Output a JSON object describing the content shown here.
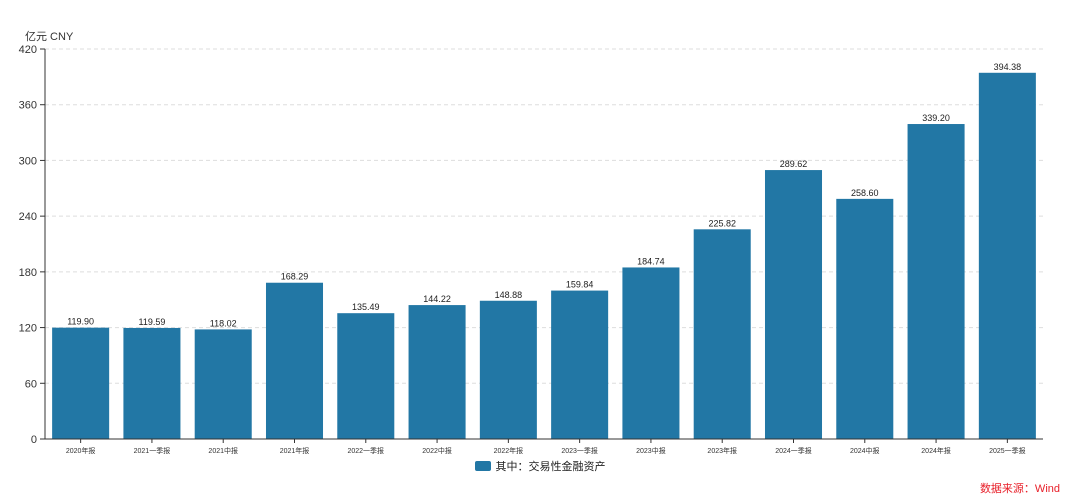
{
  "colors": {
    "bar": "#2277a5",
    "axis": "#333333",
    "grid": "#dddddd",
    "source": "#e8202a"
  },
  "chart_data": {
    "type": "bar",
    "unit": "亿元 CNY",
    "categories": [
      "2020年报",
      "2021一季报",
      "2021中报",
      "2021年报",
      "2022一季报",
      "2022中报",
      "2022年报",
      "2023一季报",
      "2023中报",
      "2023年报",
      "2024一季报",
      "2024中报",
      "2024年报",
      "2025一季报"
    ],
    "series": [
      {
        "name": "其中：交易性金融资产",
        "values": [
          119.9,
          119.59,
          118.02,
          168.29,
          135.49,
          144.22,
          148.88,
          159.84,
          184.74,
          225.82,
          289.62,
          258.6,
          339.2,
          394.38
        ]
      }
    ],
    "ylim": [
      0,
      420
    ],
    "yticks": [
      0,
      60,
      120,
      180,
      240,
      300,
      360,
      420
    ],
    "grid": true,
    "legend": "bottom-center"
  },
  "source": "数据来源：Wind"
}
